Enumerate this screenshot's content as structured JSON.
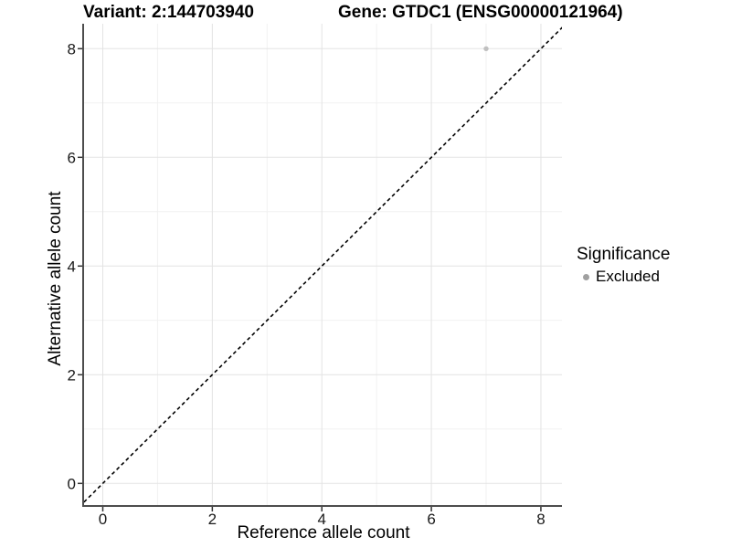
{
  "titles": {
    "variant": "Variant: 2:144703940",
    "gene": "Gene: GTDC1 (ENSG00000121964)"
  },
  "axes": {
    "x": {
      "label": "Reference allele count",
      "ticks": [
        "0",
        "2",
        "4",
        "6",
        "8"
      ]
    },
    "y": {
      "label": "Alternative allele count",
      "ticks": [
        "0",
        "2",
        "4",
        "6",
        "8"
      ]
    }
  },
  "legend": {
    "title": "Significance",
    "items": [
      {
        "label": "Excluded",
        "color": "#a0a0a0"
      }
    ]
  },
  "chart_data": {
    "type": "scatter",
    "title": "Variant: 2:144703940   Gene: GTDC1 (ENSG00000121964)",
    "xlabel": "Reference allele count",
    "ylabel": "Alternative allele count",
    "xlim": [
      -0.35,
      8.4
    ],
    "ylim": [
      -0.4,
      8.5
    ],
    "x_major_ticks": [
      0,
      2,
      4,
      6,
      8
    ],
    "y_major_ticks": [
      0,
      2,
      4,
      6,
      8
    ],
    "x_minor_gridlines": [
      1,
      3,
      5,
      7
    ],
    "y_minor_gridlines": [
      1,
      3,
      5,
      7
    ],
    "grid": true,
    "legend_position": "right",
    "series": [
      {
        "name": "Excluded",
        "points": [
          [
            7,
            8
          ]
        ],
        "color": "#c0c0c0"
      }
    ],
    "reference_line": {
      "type": "identity y=x",
      "style": "dashed",
      "color": "#000000"
    }
  },
  "colors": {
    "background": "#ffffff",
    "grid_major": "#e3e3e3",
    "grid_minor": "#f1f1f1",
    "axis_line": "#4d4d4d",
    "tick_mark": "#333333",
    "tick_label": "#1a1a1a",
    "excluded_point": "#c0c0c0",
    "legend_dot": "#a0a0a0",
    "reference_line": "#000000"
  }
}
